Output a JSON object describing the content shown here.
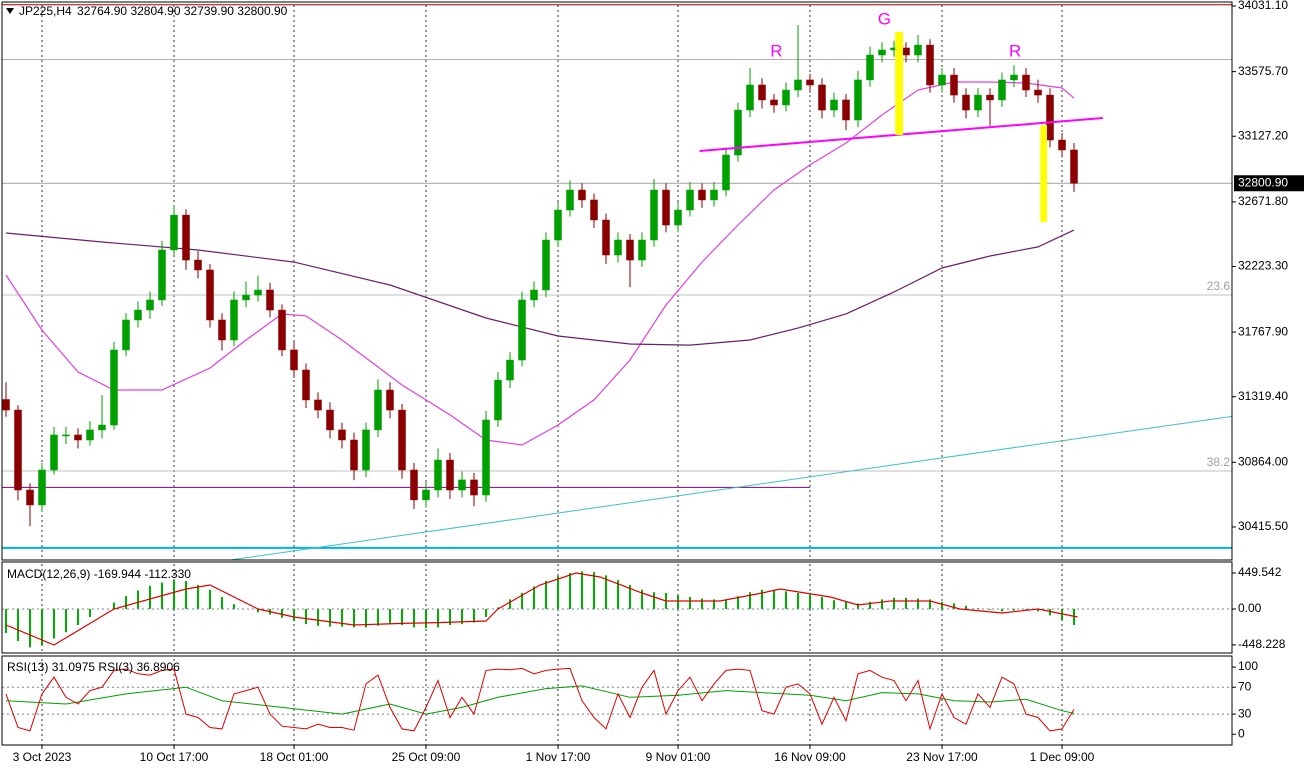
{
  "chart_data": [
    {
      "type": "candlestick",
      "title": "JP225,H4",
      "header": [
        {
          "value": 32764.9,
          "label": "32764.90"
        },
        {
          "value": 32804.9,
          "label": "32804.90"
        },
        {
          "value": 32739.9,
          "label": "32739.90"
        },
        {
          "value": 32800.9,
          "label": "32800.90"
        }
      ],
      "up_color": "#00a000",
      "down_color": "#8b0000",
      "candles": [
        [
          31300,
          31420,
          31180,
          31227
        ],
        [
          31227,
          31260,
          30600,
          30672
        ],
        [
          30672,
          30720,
          30420,
          30568
        ],
        [
          30568,
          30860,
          30520,
          30811
        ],
        [
          30811,
          31110,
          30780,
          31054
        ],
        [
          31054,
          31110,
          30990,
          31054
        ],
        [
          31054,
          31100,
          30960,
          31019
        ],
        [
          31019,
          31150,
          30980,
          31089
        ],
        [
          31089,
          31330,
          31030,
          31123
        ],
        [
          31123,
          31700,
          31090,
          31644
        ],
        [
          31644,
          31900,
          31600,
          31852
        ],
        [
          31852,
          31980,
          31800,
          31921
        ],
        [
          31921,
          32050,
          31860,
          31991
        ],
        [
          31991,
          32400,
          31950,
          32338
        ],
        [
          32338,
          32650,
          32300,
          32580
        ],
        [
          32580,
          32620,
          32200,
          32268
        ],
        [
          32268,
          32330,
          32140,
          32199
        ],
        [
          32199,
          32240,
          31800,
          31852
        ],
        [
          31852,
          31900,
          31640,
          31713
        ],
        [
          31713,
          32050,
          31670,
          31991
        ],
        [
          31991,
          32120,
          31940,
          32025
        ],
        [
          32025,
          32160,
          31980,
          32060
        ],
        [
          32060,
          32110,
          31870,
          31921
        ],
        [
          31921,
          31960,
          31600,
          31644
        ],
        [
          31644,
          31700,
          31450,
          31505
        ],
        [
          31505,
          31550,
          31240,
          31297
        ],
        [
          31297,
          31350,
          31170,
          31227
        ],
        [
          31227,
          31280,
          31030,
          31089
        ],
        [
          31089,
          31140,
          30960,
          31019
        ],
        [
          31019,
          31070,
          30740,
          30811
        ],
        [
          30811,
          31140,
          30760,
          31089
        ],
        [
          31089,
          31440,
          31040,
          31366
        ],
        [
          31366,
          31420,
          31170,
          31227
        ],
        [
          31227,
          31270,
          30750,
          30811
        ],
        [
          30811,
          30860,
          30540,
          30603
        ],
        [
          30603,
          30730,
          30550,
          30672
        ],
        [
          30672,
          30960,
          30620,
          30880
        ],
        [
          30880,
          30930,
          30610,
          30672
        ],
        [
          30672,
          30800,
          30620,
          30742
        ],
        [
          30742,
          30790,
          30560,
          30637
        ],
        [
          30637,
          31220,
          30590,
          31158
        ],
        [
          31158,
          31490,
          31110,
          31435
        ],
        [
          31435,
          31630,
          31380,
          31574
        ],
        [
          31574,
          32050,
          31530,
          31991
        ],
        [
          31991,
          32120,
          31940,
          32060
        ],
        [
          32060,
          32460,
          32010,
          32407
        ],
        [
          32407,
          32670,
          32360,
          32615
        ],
        [
          32615,
          32820,
          32570,
          32754
        ],
        [
          32754,
          32800,
          32630,
          32685
        ],
        [
          32685,
          32730,
          32490,
          32546
        ],
        [
          32546,
          32590,
          32240,
          32303
        ],
        [
          32303,
          32460,
          32250,
          32407
        ],
        [
          32407,
          32450,
          32080,
          32268
        ],
        [
          32268,
          32460,
          32220,
          32407
        ],
        [
          32407,
          32830,
          32360,
          32754
        ],
        [
          32754,
          32800,
          32460,
          32511
        ],
        [
          32511,
          32670,
          32460,
          32615
        ],
        [
          32615,
          32810,
          32570,
          32754
        ],
        [
          32754,
          32800,
          32630,
          32685
        ],
        [
          32685,
          32810,
          32640,
          32754
        ],
        [
          32754,
          33050,
          32710,
          32997
        ],
        [
          32997,
          33360,
          32950,
          33309
        ],
        [
          33309,
          33600,
          33260,
          33483
        ],
        [
          33483,
          33530,
          33320,
          33379
        ],
        [
          33379,
          33420,
          33290,
          33344
        ],
        [
          33344,
          33500,
          33300,
          33448
        ],
        [
          33448,
          33900,
          33400,
          33518
        ],
        [
          33518,
          33560,
          33430,
          33483
        ],
        [
          33483,
          33530,
          33250,
          33309
        ],
        [
          33309,
          33430,
          33260,
          33379
        ],
        [
          33379,
          33420,
          33170,
          33240
        ],
        [
          33240,
          33580,
          33190,
          33518
        ],
        [
          33518,
          33750,
          33470,
          33691
        ],
        [
          33691,
          33780,
          33640,
          33726
        ],
        [
          33726,
          33790,
          33680,
          33740
        ],
        [
          33740,
          33780,
          33640,
          33691
        ],
        [
          33691,
          33830,
          33640,
          33760
        ],
        [
          33760,
          33800,
          33430,
          33483
        ],
        [
          33483,
          33600,
          33430,
          33552
        ],
        [
          33552,
          33600,
          33360,
          33413
        ],
        [
          33413,
          33460,
          33250,
          33309
        ],
        [
          33309,
          33460,
          33260,
          33413
        ],
        [
          33413,
          33460,
          33200,
          33379
        ],
        [
          33379,
          33570,
          33330,
          33518
        ],
        [
          33518,
          33620,
          33470,
          33552
        ],
        [
          33552,
          33600,
          33400,
          33448
        ],
        [
          33448,
          33520,
          33360,
          33413
        ],
        [
          33413,
          33460,
          33050,
          33101
        ],
        [
          33101,
          33150,
          32980,
          33032
        ],
        [
          33032,
          33080,
          32739.9,
          32800.9
        ]
      ],
      "categories": [
        null,
        null,
        null,
        "3 Oct 2023",
        null,
        null,
        null,
        null,
        null,
        null,
        null,
        null,
        null,
        null,
        "10 Oct 17:00",
        null,
        null,
        null,
        null,
        null,
        null,
        null,
        null,
        null,
        "18 Oct 01:00",
        null,
        null,
        null,
        null,
        null,
        null,
        null,
        null,
        null,
        null,
        "25 Oct 09:00",
        null,
        null,
        null,
        null,
        null,
        null,
        null,
        null,
        null,
        null,
        "1 Nov 17:00",
        null,
        null,
        null,
        null,
        null,
        null,
        null,
        null,
        null,
        "9 Nov 01:00",
        null,
        null,
        null,
        null,
        null,
        null,
        null,
        null,
        null,
        null,
        "16 Nov 09:00",
        null,
        null,
        null,
        null,
        null,
        null,
        null,
        null,
        null,
        null,
        "23 Nov 17:00",
        null,
        null,
        null,
        null,
        null,
        null,
        null,
        null,
        null,
        "1 Dec 09:00",
        null
      ],
      "grid": true,
      "ylim": [
        30207,
        34052
      ],
      "yticks": [
        {
          "value": 34031.1,
          "label": "34031.10"
        },
        {
          "value": 33575.7,
          "label": "33575.70"
        },
        {
          "value": 33127.2,
          "label": "33127.20"
        },
        {
          "value": 32671.8,
          "label": "32671.80"
        },
        {
          "value": 32223.3,
          "label": "32223.30"
        },
        {
          "value": 31767.9,
          "label": "31767.90"
        },
        {
          "value": 31319.4,
          "label": "31319.40"
        },
        {
          "value": 30864,
          "label": "30864.00"
        },
        {
          "value": 30415.5,
          "label": "30415.50"
        }
      ],
      "last_price": {
        "value": 32800.9,
        "label": "32800.90"
      },
      "moving_averages": [
        {
          "color": "#e040e0",
          "x": [
            0,
            3,
            6,
            9,
            13,
            17,
            20,
            23,
            25,
            28,
            33,
            37,
            40,
            43,
            46,
            49,
            52,
            55,
            58,
            61,
            64,
            67,
            70,
            73,
            76,
            79,
            82,
            85,
            88,
            89
          ],
          "values": [
            32164,
            31782,
            31491,
            31366,
            31366,
            31519,
            31713,
            31894,
            31880,
            31713,
            31401,
            31193,
            31019,
            30984,
            31123,
            31297,
            31574,
            31956,
            32254,
            32511,
            32754,
            32928,
            33080,
            33275,
            33448,
            33504,
            33504,
            33497,
            33462,
            33392
          ]
        },
        {
          "color": "#6b1f6b",
          "x": [
            0,
            8,
            16,
            24,
            32,
            40,
            46,
            52,
            57,
            62,
            66,
            70,
            74,
            78,
            82,
            86,
            89
          ],
          "values": [
            32456,
            32393,
            32338,
            32254,
            32095,
            31866,
            31741,
            31685,
            31678,
            31713,
            31796,
            31894,
            32046,
            32213,
            32296,
            32359,
            32476
          ]
        }
      ],
      "levels": [
        {
          "value": 34040,
          "color": "#a00000"
        },
        {
          "value": 33660,
          "color": "#b0b0b0"
        },
        {
          "value": 30690,
          "color": "#800080",
          "x": [
            -1,
            67
          ]
        },
        {
          "value": 30270,
          "color": "#00b0f0"
        }
      ],
      "fib_levels": [
        {
          "value": 32025,
          "label": "23.6"
        },
        {
          "value": 30804,
          "label": "38.2"
        }
      ],
      "trendlines": [
        {
          "color": "#ff00ff",
          "x": [
            57.8,
            91.4
          ],
          "values": [
            33025,
            33254
          ]
        },
        {
          "color": "#40c0c0",
          "x": [
            18.7,
            102.4
          ],
          "values": [
            30186,
            31186
          ]
        }
      ],
      "highlights": [
        {
          "color": "#ffff00",
          "x": [
            74.1,
            74.75
          ],
          "values": [
            33851,
            33136
          ]
        },
        {
          "color": "#ffff00",
          "x": [
            86.2,
            86.75
          ],
          "values": [
            33205,
            32532
          ]
        }
      ],
      "annotations": [
        {
          "text": "R",
          "x": 64.2,
          "y": 33712
        },
        {
          "text": "G",
          "x": 73.2,
          "y": 33934
        },
        {
          "text": "R",
          "x": 84.1,
          "y": 33712
        }
      ],
      "annotation_color": "#ff00ff"
    },
    {
      "type": "bar",
      "title": "MACD(12,26,9)",
      "header": [
        -169.944,
        {
          "value": -112.33,
          "label": "-112.330"
        }
      ],
      "color": "#00b000",
      "values": [
        -300,
        -400,
        -480,
        -450,
        -370,
        -290,
        -200,
        -100,
        0,
        80,
        160,
        230,
        290,
        330,
        360,
        350,
        300,
        240,
        150,
        60,
        0,
        -40,
        -70,
        -110,
        -150,
        -190,
        -210,
        -220,
        -220,
        -230,
        -230,
        -210,
        -190,
        -200,
        -230,
        -240,
        -230,
        -200,
        -190,
        -170,
        -100,
        20,
        120,
        200,
        280,
        350,
        410,
        450,
        470,
        460,
        420,
        360,
        300,
        240,
        210,
        200,
        170,
        150,
        130,
        120,
        120,
        160,
        210,
        240,
        240,
        220,
        200,
        180,
        150,
        110,
        90,
        70,
        90,
        120,
        140,
        140,
        130,
        120,
        90,
        70,
        40,
        10,
        -10,
        -30,
        -20,
        -10,
        -30,
        -80,
        -140,
        -200
      ],
      "signal": {
        "color": "#e00000",
        "x": [
          0,
          4,
          9,
          15,
          17,
          21,
          24,
          29,
          33,
          36,
          40,
          41,
          44.5,
          47.5,
          49.5,
          53,
          55,
          59.5,
          63,
          64.5,
          68.7,
          71,
          73.7,
          77,
          79.5,
          83,
          86,
          89.3
        ],
        "values": [
          -200,
          -450,
          0,
          250,
          300,
          0,
          -100,
          -200,
          -180,
          -170,
          -150,
          0,
          300,
          450,
          400,
          200,
          100,
          100,
          200,
          250,
          150,
          50,
          100,
          100,
          0,
          -50,
          0,
          -100
        ]
      },
      "levels": [
        0
      ],
      "ylim": [
        -550,
        587
      ],
      "yticks": [
        449.542,
        {
          "value": 0,
          "label": "0.00"
        },
        -448.228
      ]
    },
    {
      "type": "line",
      "series": [
        {
          "name": "RSI(13)",
          "header": 31.0975,
          "color": "#00a000",
          "x": [
            0,
            5,
            10,
            15,
            18,
            23,
            28,
            32,
            35,
            38,
            41,
            45,
            48,
            52,
            56,
            60,
            63,
            67,
            70,
            73,
            76,
            79,
            82,
            85,
            88,
            89
          ],
          "values": [
            50,
            45,
            60,
            70,
            50,
            40,
            30,
            45,
            30,
            40,
            55,
            68,
            72,
            55,
            58,
            65,
            62,
            58,
            50,
            62,
            60,
            50,
            48,
            52,
            35,
            31
          ]
        },
        {
          "name": "RSI(3)",
          "header": 36.8906,
          "color": "#e00000",
          "values": [
            60,
            10,
            5,
            60,
            85,
            55,
            45,
            65,
            70,
            95,
            97,
            90,
            88,
            95,
            97,
            30,
            25,
            10,
            8,
            60,
            65,
            70,
            30,
            12,
            10,
            8,
            15,
            10,
            10,
            6,
            75,
            88,
            40,
            8,
            5,
            40,
            80,
            25,
            55,
            30,
            95,
            97,
            96,
            98,
            90,
            95,
            97,
            98,
            50,
            25,
            8,
            60,
            25,
            70,
            95,
            30,
            65,
            85,
            50,
            75,
            95,
            97,
            95,
            35,
            30,
            70,
            75,
            60,
            15,
            55,
            20,
            90,
            95,
            85,
            80,
            50,
            80,
            8,
            60,
            25,
            15,
            60,
            40,
            85,
            75,
            30,
            25,
            5,
            8,
            37
          ]
        }
      ],
      "levels": [
        70,
        30
      ],
      "ylim": [
        -16,
        115
      ],
      "yticks": [
        100,
        70,
        30,
        0
      ]
    }
  ]
}
